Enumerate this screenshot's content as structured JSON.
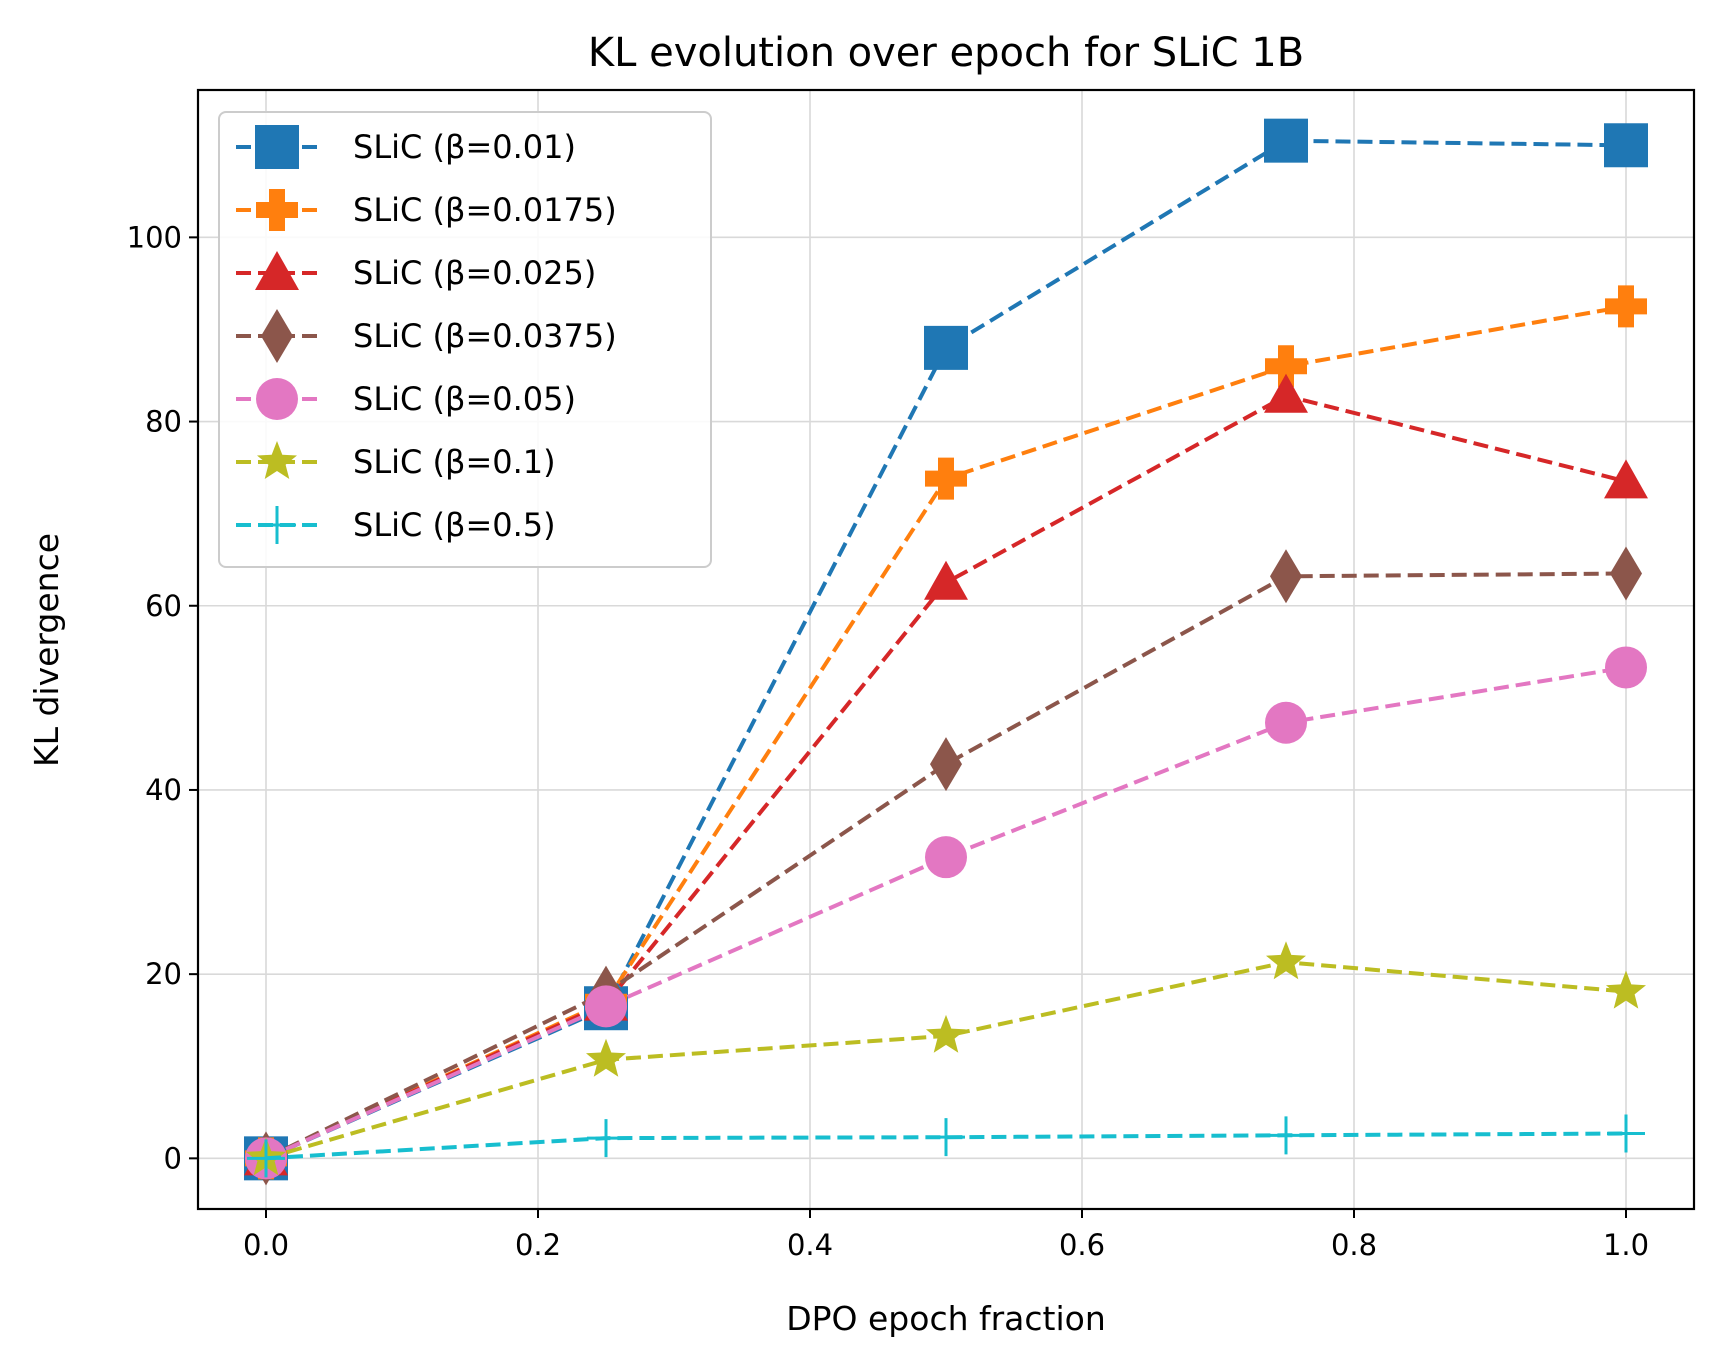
{
  "chart_data": {
    "type": "line",
    "title": "KL evolution over epoch for SLiC 1B",
    "xlabel": "DPO epoch fraction",
    "ylabel": "KL divergence",
    "xlim": [
      -0.05,
      1.05
    ],
    "ylim": [
      -5.5,
      116
    ],
    "xticks": [
      0.0,
      0.2,
      0.4,
      0.6,
      0.8,
      1.0
    ],
    "xtick_labels": [
      "0.0",
      "0.2",
      "0.4",
      "0.6",
      "0.8",
      "1.0"
    ],
    "yticks": [
      0,
      20,
      40,
      60,
      80,
      100
    ],
    "ytick_labels": [
      "0",
      "20",
      "40",
      "60",
      "80",
      "100"
    ],
    "grid": true,
    "legend_position": "top-left",
    "x": [
      0.0,
      0.25,
      0.5,
      0.75,
      1.0
    ],
    "series": [
      {
        "name": "SLiC (β=0.01)",
        "color": "#1f77b4",
        "marker": "square",
        "values": [
          0.0,
          16.3,
          88.0,
          110.5,
          110.0
        ]
      },
      {
        "name": "SLiC (β=0.0175)",
        "color": "#ff7f0e",
        "marker": "plus-filled",
        "values": [
          0.0,
          17.0,
          73.8,
          86.0,
          92.5
        ]
      },
      {
        "name": "SLiC (β=0.025)",
        "color": "#d62728",
        "marker": "triangle",
        "values": [
          0.0,
          16.8,
          62.5,
          82.8,
          73.5
        ]
      },
      {
        "name": "SLiC (β=0.0375)",
        "color": "#8c564b",
        "marker": "diamond",
        "values": [
          0.0,
          18.0,
          42.8,
          63.2,
          63.5
        ]
      },
      {
        "name": "SLiC (β=0.05)",
        "color": "#e377c2",
        "marker": "circle",
        "values": [
          0.0,
          16.5,
          32.7,
          47.3,
          53.3
        ]
      },
      {
        "name": "SLiC (β=0.1)",
        "color": "#bcbd22",
        "marker": "star",
        "values": [
          0.0,
          10.7,
          13.3,
          21.3,
          18.1
        ]
      },
      {
        "name": "SLiC (β=0.5)",
        "color": "#17becf",
        "marker": "plus-thin",
        "values": [
          0.0,
          2.2,
          2.3,
          2.5,
          2.7
        ]
      }
    ]
  }
}
